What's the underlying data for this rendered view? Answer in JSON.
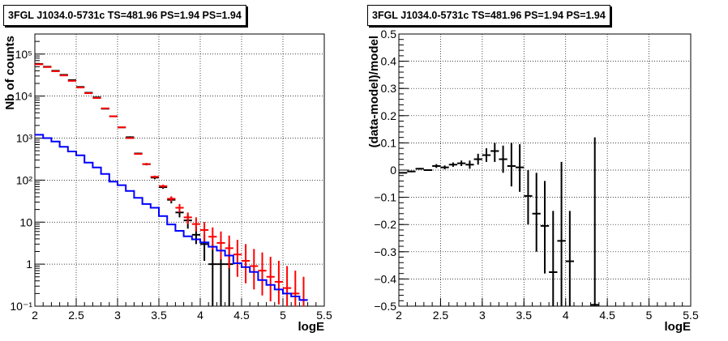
{
  "colors": {
    "data": "#000000",
    "model": "#ff0000",
    "source": "#0000ff",
    "grid": "#000000"
  },
  "chart_data": [
    {
      "type": "line",
      "title": "3FGL J1034.0-5731c TS=481.96 PS=1.94 PS=1.94",
      "xlabel": "logE",
      "ylabel": "Nb of counts",
      "xlim": [
        2,
        5.5
      ],
      "ylim": [
        0.1,
        300000
      ],
      "log_y": true,
      "grid": true,
      "x_ticks": [
        "2",
        "2.5",
        "3",
        "3.5",
        "4",
        "4.5",
        "5",
        "5.5"
      ],
      "y_ticks": [
        "10⁻¹",
        "1",
        "10",
        "10²",
        "10³",
        "10⁴",
        "10⁵"
      ],
      "bin_width": 0.1,
      "series": [
        {
          "role": "data",
          "x": [
            2.05,
            2.15,
            2.25,
            2.35,
            2.45,
            2.55,
            2.65,
            2.75,
            2.85,
            2.95,
            3.05,
            3.15,
            3.25,
            3.35,
            3.45,
            3.55,
            3.65,
            3.75,
            3.85,
            3.95,
            4.05,
            4.15,
            4.25,
            4.35
          ],
          "y": [
            58000,
            50000,
            40000,
            32000,
            24000,
            16500,
            12000,
            9300,
            5000,
            3300,
            1800,
            1050,
            430,
            240,
            115,
            68,
            34,
            17,
            11,
            5,
            3,
            1,
            1,
            1
          ],
          "y_low": [
            57500,
            49500,
            39500,
            31500,
            23500,
            16300,
            11800,
            9100,
            4900,
            3200,
            1750,
            1000,
            410,
            225,
            105,
            62,
            28,
            13,
            7,
            3,
            1.2,
            0.1,
            0.1,
            0.1
          ],
          "y_high": [
            58500,
            50500,
            40500,
            32500,
            24500,
            16700,
            12200,
            9500,
            5100,
            3400,
            1850,
            1100,
            450,
            255,
            125,
            75,
            40,
            22,
            15,
            8,
            5,
            3,
            3,
            3
          ]
        },
        {
          "role": "model",
          "x": [
            2.05,
            2.15,
            2.25,
            2.35,
            2.45,
            2.55,
            2.65,
            2.75,
            2.85,
            2.95,
            3.05,
            3.15,
            3.25,
            3.35,
            3.45,
            3.55,
            3.65,
            3.75,
            3.85,
            3.95,
            4.05,
            4.15,
            4.25,
            4.35,
            4.45,
            4.55,
            4.65,
            4.75,
            4.85,
            4.95,
            5.05,
            5.15,
            5.25
          ],
          "y": [
            57000,
            49000,
            39000,
            31000,
            23000,
            16000,
            11700,
            9000,
            5100,
            3300,
            1800,
            1000,
            420,
            240,
            120,
            72,
            36,
            22,
            13,
            9,
            6.5,
            4.5,
            3.2,
            2.4,
            1.7,
            1.2,
            0.9,
            0.7,
            0.5,
            0.38,
            0.27,
            0.2,
            0.14
          ],
          "y_low": [
            56800,
            48800,
            38800,
            30800,
            22800,
            15800,
            11500,
            8800,
            5000,
            3240,
            1760,
            975,
            405,
            230,
            112,
            66,
            31,
            17,
            9,
            6,
            3.5,
            2.2,
            1.3,
            0.8,
            0.5,
            0.35,
            0.25,
            0.18,
            0.13,
            0.11,
            0.1,
            0.1,
            0.1
          ],
          "y_high": [
            57200,
            49200,
            39200,
            31200,
            23200,
            16200,
            11900,
            9200,
            5200,
            3360,
            1840,
            1025,
            435,
            250,
            128,
            78,
            41,
            27,
            17,
            13,
            10,
            7.5,
            6,
            4.8,
            3.8,
            3,
            2.3,
            1.9,
            1.5,
            1.2,
            0.9,
            0.7,
            0.5
          ]
        },
        {
          "role": "source",
          "step": true,
          "x": [
            2.05,
            2.15,
            2.25,
            2.35,
            2.45,
            2.55,
            2.65,
            2.75,
            2.85,
            2.95,
            3.05,
            3.15,
            3.25,
            3.35,
            3.45,
            3.55,
            3.65,
            3.75,
            3.85,
            3.95,
            4.05,
            4.15,
            4.25,
            4.35,
            4.45,
            4.55,
            4.65,
            4.75,
            4.85,
            4.95,
            5.05,
            5.15,
            5.25
          ],
          "y": [
            1200,
            1000,
            830,
            620,
            480,
            390,
            260,
            200,
            140,
            92,
            76,
            55,
            38,
            27,
            22,
            14,
            8.8,
            6.2,
            4.6,
            3.9,
            3.3,
            2.6,
            2.1,
            1.6,
            1.05,
            0.85,
            0.65,
            0.42,
            0.32,
            0.25,
            0.2,
            0.17,
            0.14
          ]
        }
      ]
    },
    {
      "type": "scatter",
      "title": "3FGL J1034.0-5731c TS=481.96 PS=1.94 PS=1.94",
      "xlabel": "logE",
      "ylabel": "(data-model)/model",
      "xlim": [
        2,
        5.5
      ],
      "ylim": [
        -0.5,
        0.5
      ],
      "grid": true,
      "x_ticks": [
        "2",
        "2.5",
        "3",
        "3.5",
        "4",
        "4.5",
        "5",
        "5.5"
      ],
      "y_ticks": [
        "−0.5",
        "−0.4",
        "−0.3",
        "−0.2",
        "−0.1",
        "0",
        "0.1",
        "0.2",
        "0.3",
        "0.4",
        "0.5"
      ],
      "bin_width": 0.1,
      "series": [
        {
          "role": "residual",
          "x": [
            2.05,
            2.15,
            2.25,
            2.35,
            2.45,
            2.55,
            2.65,
            2.75,
            2.85,
            2.95,
            3.05,
            3.15,
            3.25,
            3.35,
            3.45,
            3.55,
            3.65,
            3.75,
            3.85,
            3.95,
            4.05,
            4.35
          ],
          "y": [
            -0.01,
            -0.005,
            0.005,
            0.0,
            0.015,
            0.01,
            0.02,
            0.025,
            0.02,
            0.04,
            0.055,
            0.07,
            0.04,
            0.015,
            0.01,
            -0.095,
            -0.16,
            -0.205,
            -0.375,
            -0.26,
            -0.335,
            -0.495
          ],
          "y_low": [
            -0.012,
            -0.008,
            0.002,
            -0.003,
            0.008,
            0.003,
            0.012,
            0.015,
            0.005,
            0.02,
            0.03,
            0.03,
            -0.01,
            -0.06,
            -0.08,
            -0.2,
            -0.3,
            -0.38,
            -0.5,
            -0.5,
            -0.5,
            -0.5
          ],
          "y_high": [
            -0.008,
            -0.002,
            0.008,
            0.003,
            0.022,
            0.017,
            0.028,
            0.035,
            0.035,
            0.06,
            0.08,
            0.1,
            0.09,
            0.1,
            0.095,
            0.0,
            -0.01,
            -0.04,
            -0.15,
            0.03,
            -0.15,
            0.12
          ]
        }
      ]
    }
  ]
}
